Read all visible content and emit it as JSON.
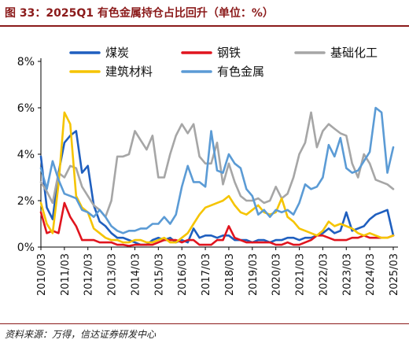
{
  "title": "图 33：2025Q1 有色金属持仓占比回升（单位：%）",
  "source": "资料来源：万得，信达证券研发中心",
  "chart_data": {
    "type": "line",
    "ylim": [
      0,
      8
    ],
    "y_ticks": [
      "0%",
      "2%",
      "4%",
      "6%",
      "8%"
    ],
    "x_ticks": [
      "2010/03",
      "2011/03",
      "2012/03",
      "2013/03",
      "2014/03",
      "2015/03",
      "2016/03",
      "2017/03",
      "2018/03",
      "2019/03",
      "2020/03",
      "2021/03",
      "2022/03",
      "2023/03",
      "2024/03",
      "2025/03"
    ],
    "x_start": 2010.0,
    "x_end": 2025.0,
    "grid": false,
    "legend_position": "top",
    "series": [
      {
        "name": "煤炭",
        "color": "#1f5fbf",
        "x": [
          2010.0,
          2010.25,
          2010.5,
          2010.75,
          2011.0,
          2011.25,
          2011.5,
          2011.75,
          2012.0,
          2012.25,
          2012.5,
          2012.75,
          2013.0,
          2013.25,
          2013.5,
          2013.75,
          2014.0,
          2014.25,
          2014.5,
          2014.75,
          2015.0,
          2015.25,
          2015.5,
          2015.75,
          2016.0,
          2016.25,
          2016.5,
          2016.75,
          2017.0,
          2017.25,
          2017.5,
          2017.75,
          2018.0,
          2018.25,
          2018.5,
          2018.75,
          2019.0,
          2019.25,
          2019.5,
          2019.75,
          2020.0,
          2020.25,
          2020.5,
          2020.75,
          2021.0,
          2021.25,
          2021.5,
          2021.75,
          2022.0,
          2022.25,
          2022.5,
          2022.75,
          2023.0,
          2023.25,
          2023.5,
          2023.75,
          2024.0,
          2024.25,
          2024.5,
          2024.75,
          2025.0
        ],
        "y": [
          3.9,
          1.7,
          1.2,
          3.2,
          4.5,
          4.8,
          5.0,
          3.2,
          3.5,
          1.8,
          1.1,
          0.9,
          0.6,
          0.4,
          0.4,
          0.3,
          0.2,
          0.1,
          0.1,
          0.3,
          0.4,
          0.3,
          0.4,
          0.2,
          0.3,
          0.2,
          0.8,
          0.4,
          0.5,
          0.5,
          0.4,
          0.5,
          0.5,
          0.3,
          0.3,
          0.3,
          0.2,
          0.3,
          0.3,
          0.2,
          0.3,
          0.3,
          0.4,
          0.4,
          0.3,
          0.4,
          0.4,
          0.5,
          0.6,
          0.8,
          0.6,
          0.7,
          1.5,
          0.7,
          0.8,
          0.9,
          1.2,
          1.4,
          1.5,
          1.6,
          0.5
        ]
      },
      {
        "name": "钢铁",
        "color": "#e0141e",
        "x": [
          2010.0,
          2010.25,
          2010.5,
          2010.75,
          2011.0,
          2011.25,
          2011.5,
          2011.75,
          2012.0,
          2012.25,
          2012.5,
          2012.75,
          2013.0,
          2013.25,
          2013.5,
          2013.75,
          2014.0,
          2014.25,
          2014.5,
          2014.75,
          2015.0,
          2015.25,
          2015.5,
          2015.75,
          2016.0,
          2016.25,
          2016.5,
          2016.75,
          2017.0,
          2017.25,
          2017.5,
          2017.75,
          2018.0,
          2018.25,
          2018.5,
          2018.75,
          2019.0,
          2019.25,
          2019.5,
          2019.75,
          2020.0,
          2020.25,
          2020.5,
          2020.75,
          2021.0,
          2021.25,
          2021.5,
          2021.75,
          2022.0,
          2022.25,
          2022.5,
          2022.75,
          2023.0,
          2023.25,
          2023.5,
          2023.75,
          2024.0,
          2024.25,
          2024.5,
          2024.75,
          2025.0
        ],
        "y": [
          1.5,
          0.6,
          0.7,
          0.6,
          1.9,
          1.3,
          0.9,
          0.3,
          0.3,
          0.3,
          0.2,
          0.2,
          0.2,
          0.1,
          0.1,
          0.05,
          0.1,
          0.1,
          0.1,
          0.1,
          0.2,
          0.3,
          0.3,
          0.3,
          0.2,
          0.3,
          0.3,
          0.1,
          0.1,
          0.1,
          0.3,
          0.3,
          0.9,
          0.4,
          0.3,
          0.2,
          0.2,
          0.2,
          0.2,
          0.2,
          0.1,
          0.1,
          0.2,
          0.1,
          0.1,
          0.2,
          0.3,
          0.5,
          0.5,
          0.4,
          0.3,
          0.3,
          0.3,
          0.4,
          0.4,
          0.5,
          0.4,
          0.4,
          0.4,
          0.4,
          0.5
        ]
      },
      {
        "name": "基础化工",
        "color": "#a6a6a6",
        "x": [
          2010.0,
          2010.25,
          2010.5,
          2010.75,
          2011.0,
          2011.25,
          2011.5,
          2011.75,
          2012.0,
          2012.25,
          2012.5,
          2012.75,
          2013.0,
          2013.25,
          2013.5,
          2013.75,
          2014.0,
          2014.25,
          2014.5,
          2014.75,
          2015.0,
          2015.25,
          2015.5,
          2015.75,
          2016.0,
          2016.25,
          2016.5,
          2016.75,
          2017.0,
          2017.25,
          2017.5,
          2017.75,
          2018.0,
          2018.25,
          2018.5,
          2018.75,
          2019.0,
          2019.25,
          2019.5,
          2019.75,
          2020.0,
          2020.25,
          2020.5,
          2020.75,
          2021.0,
          2021.25,
          2021.5,
          2021.75,
          2022.0,
          2022.25,
          2022.5,
          2022.75,
          2023.0,
          2023.25,
          2023.5,
          2023.75,
          2024.0,
          2024.25,
          2024.5,
          2024.75,
          2025.0
        ],
        "y": [
          2.8,
          2.4,
          1.9,
          3.2,
          3.0,
          3.5,
          3.4,
          2.6,
          2.2,
          1.8,
          1.6,
          1.3,
          2.0,
          3.9,
          3.9,
          4.0,
          5.0,
          4.6,
          4.2,
          4.8,
          3.0,
          3.0,
          4.0,
          4.8,
          5.3,
          4.9,
          5.3,
          3.9,
          3.6,
          3.6,
          4.5,
          2.7,
          3.6,
          2.8,
          2.2,
          2.0,
          2.0,
          2.1,
          1.9,
          2.0,
          2.6,
          2.1,
          2.3,
          3.0,
          4.0,
          4.5,
          5.8,
          4.3,
          5.0,
          5.3,
          5.1,
          4.9,
          4.8,
          3.6,
          3.0,
          4.0,
          3.6,
          2.9,
          2.8,
          2.7,
          2.5
        ]
      },
      {
        "name": "建筑材料",
        "color": "#f5c400",
        "x": [
          2010.0,
          2010.25,
          2010.5,
          2010.75,
          2011.0,
          2011.25,
          2011.5,
          2011.75,
          2012.0,
          2012.25,
          2012.5,
          2012.75,
          2013.0,
          2013.25,
          2013.5,
          2013.75,
          2014.0,
          2014.25,
          2014.5,
          2014.75,
          2015.0,
          2015.25,
          2015.5,
          2015.75,
          2016.0,
          2016.25,
          2016.5,
          2016.75,
          2017.0,
          2017.25,
          2017.5,
          2017.75,
          2018.0,
          2018.25,
          2018.5,
          2018.75,
          2019.0,
          2019.25,
          2019.5,
          2019.75,
          2020.0,
          2020.25,
          2020.5,
          2020.75,
          2021.0,
          2021.25,
          2021.5,
          2021.75,
          2022.0,
          2022.25,
          2022.5,
          2022.75,
          2023.0,
          2023.25,
          2023.5,
          2023.75,
          2024.0,
          2024.25,
          2024.5,
          2024.75,
          2025.0
        ],
        "y": [
          1.9,
          1.0,
          0.6,
          2.7,
          5.8,
          5.3,
          2.2,
          1.7,
          1.5,
          0.8,
          0.6,
          0.4,
          0.3,
          0.3,
          0.2,
          0.2,
          0.3,
          0.3,
          0.2,
          0.2,
          0.3,
          0.4,
          0.2,
          0.2,
          0.4,
          0.6,
          1.0,
          1.4,
          1.7,
          1.8,
          1.9,
          2.0,
          2.2,
          1.8,
          1.5,
          1.4,
          1.6,
          1.8,
          1.5,
          1.4,
          1.5,
          2.1,
          1.3,
          1.1,
          0.8,
          0.7,
          0.6,
          0.5,
          0.7,
          1.1,
          0.9,
          1.0,
          0.9,
          0.8,
          0.6,
          0.5,
          0.6,
          0.5,
          0.4,
          0.4,
          0.5
        ]
      },
      {
        "name": "有色金属",
        "color": "#5b9bd5",
        "x": [
          2010.0,
          2010.25,
          2010.5,
          2010.75,
          2011.0,
          2011.25,
          2011.5,
          2011.75,
          2012.0,
          2012.25,
          2012.5,
          2012.75,
          2013.0,
          2013.25,
          2013.5,
          2013.75,
          2014.0,
          2014.25,
          2014.5,
          2014.75,
          2015.0,
          2015.25,
          2015.5,
          2015.75,
          2016.0,
          2016.25,
          2016.5,
          2016.75,
          2017.0,
          2017.25,
          2017.5,
          2017.75,
          2018.0,
          2018.25,
          2018.5,
          2018.75,
          2019.0,
          2019.25,
          2019.5,
          2019.75,
          2020.0,
          2020.25,
          2020.5,
          2020.75,
          2021.0,
          2021.25,
          2021.5,
          2021.75,
          2022.0,
          2022.25,
          2022.5,
          2022.75,
          2023.0,
          2023.25,
          2023.5,
          2023.75,
          2024.0,
          2024.25,
          2024.5,
          2024.75,
          2025.0
        ],
        "y": [
          3.4,
          2.5,
          3.7,
          2.9,
          2.3,
          2.2,
          2.1,
          1.6,
          1.5,
          1.3,
          1.6,
          1.3,
          0.9,
          0.7,
          0.6,
          0.7,
          0.7,
          0.8,
          0.8,
          1.0,
          1.0,
          1.3,
          1.0,
          1.4,
          2.6,
          3.5,
          2.8,
          2.8,
          2.6,
          5.0,
          3.3,
          3.2,
          4.0,
          3.6,
          3.4,
          2.5,
          2.2,
          1.4,
          1.6,
          1.3,
          1.6,
          1.5,
          1.6,
          1.4,
          1.9,
          2.7,
          2.5,
          2.6,
          3.0,
          4.4,
          3.9,
          4.7,
          3.4,
          3.2,
          3.3,
          3.7,
          4.1,
          6.0,
          5.8,
          3.2,
          4.3
        ]
      }
    ]
  }
}
